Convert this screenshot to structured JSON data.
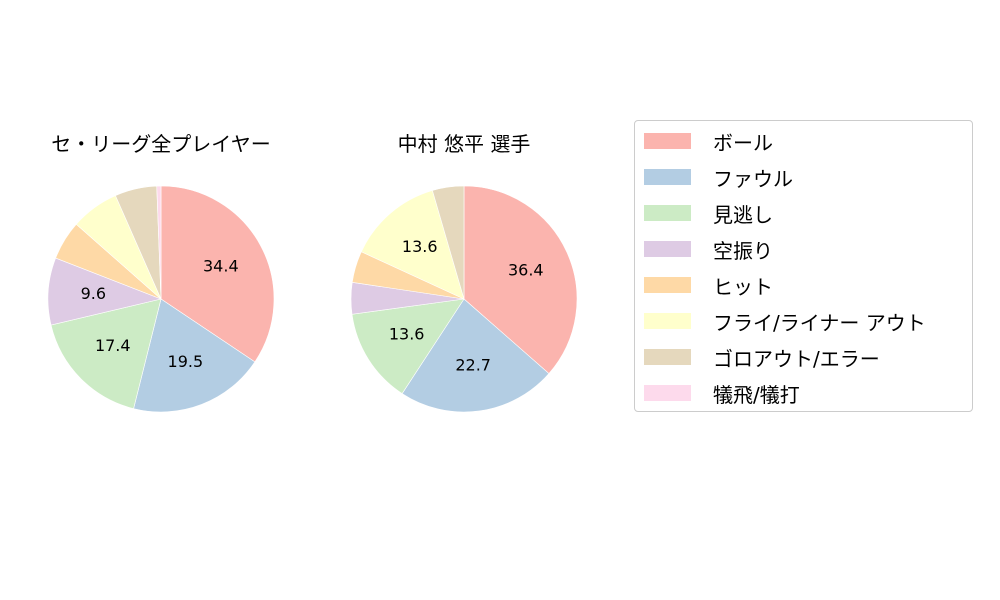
{
  "chart_data": [
    {
      "type": "pie",
      "title": "セ・リーグ全プレイヤー",
      "categories": [
        "ボール",
        "ファウル",
        "見逃し",
        "空振り",
        "ヒット",
        "フライ/ライナー アウト",
        "ゴロアウト/エラー",
        "犠飛/犠打"
      ],
      "values": [
        34.4,
        19.5,
        17.4,
        9.6,
        5.6,
        6.9,
        6.0,
        0.6
      ],
      "labels_shown": [
        "34.4",
        "19.5",
        "17.4",
        "9.6",
        "",
        "",
        "",
        ""
      ],
      "start_angle": 90,
      "direction": "clockwise"
    },
    {
      "type": "pie",
      "title": "中村 悠平  選手",
      "categories": [
        "ボール",
        "ファウル",
        "見逃し",
        "空振り",
        "ヒット",
        "フライ/ライナー アウト",
        "ゴロアウト/エラー",
        "犠飛/犠打"
      ],
      "values": [
        36.4,
        22.7,
        13.6,
        4.5,
        4.5,
        13.6,
        4.5,
        0
      ],
      "labels_shown": [
        "36.4",
        "22.7",
        "13.6",
        "",
        "",
        "13.6",
        "",
        ""
      ],
      "start_angle": 90,
      "direction": "clockwise"
    }
  ],
  "titles": {
    "left": "セ・リーグ全プレイヤー",
    "right": "中村 悠平  選手"
  },
  "legend": {
    "position": "right",
    "items": [
      {
        "label": "ボール",
        "color": "#fbb4ae"
      },
      {
        "label": "ファウル",
        "color": "#b3cde3"
      },
      {
        "label": "見逃し",
        "color": "#ccebc5"
      },
      {
        "label": "空振り",
        "color": "#decbe4"
      },
      {
        "label": "ヒット",
        "color": "#fed9a6"
      },
      {
        "label": "フライ/ライナー アウト",
        "color": "#ffffcc"
      },
      {
        "label": "ゴロアウト/エラー",
        "color": "#e5d8bd"
      },
      {
        "label": "犠飛/犠打",
        "color": "#fddaec"
      }
    ]
  }
}
